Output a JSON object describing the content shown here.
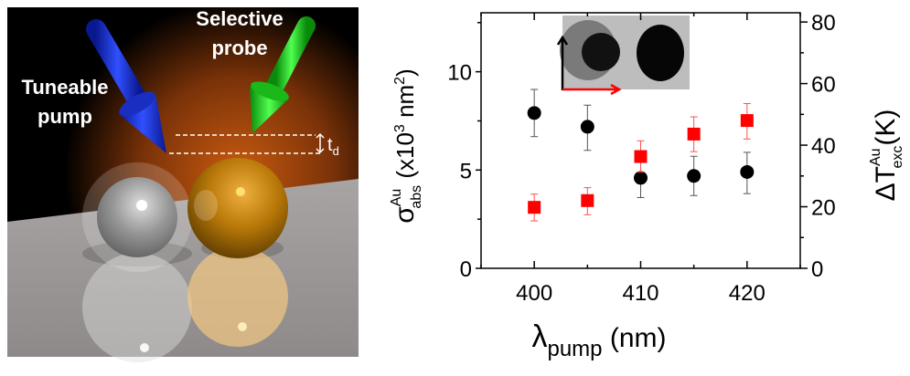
{
  "illustration": {
    "pump_label_line1": "Tuneable",
    "pump_label_line2": "pump",
    "probe_label_line1": "Selective",
    "probe_label_line2": "probe",
    "delay_label": "t",
    "delay_subscript": "d",
    "pump_color": "#1a2fe0",
    "probe_color": "#22d422",
    "gold_sphere_color": "#c8860a",
    "core_shell_sphere_color": "#8a8a8a"
  },
  "inset": {
    "description_visible": false,
    "arrow_colors": [
      "#000000",
      "#ff0000"
    ]
  },
  "chart_data": {
    "type": "scatter",
    "xlabel": "λ",
    "xlabel_sub": "pump",
    "xlabel_unit": " (nm)",
    "ylabel_left": {
      "symbol": "σ",
      "sup": "Au",
      "sub": "abs",
      "unit": " (x10",
      "unit_exp": "3",
      "unit_tail": " nm",
      "unit_exp2": "2",
      "unit_close": ")"
    },
    "ylabel_right": {
      "symbol": "ΔT",
      "sup": "Au",
      "sub": "exc",
      "unit": "(K)"
    },
    "xlim": [
      395,
      425
    ],
    "ylim_left": [
      0,
      13
    ],
    "ylim_right": [
      0,
      83
    ],
    "xticks": [
      400,
      410,
      420
    ],
    "xticks_minor": [
      395,
      405,
      415,
      425
    ],
    "yticks_left": [
      0,
      5,
      10
    ],
    "yticks_right": [
      0,
      20,
      40,
      60,
      80
    ],
    "grid": false,
    "series": [
      {
        "axis": "left",
        "marker": "circle",
        "color": "#000000",
        "x": [
          400,
          405,
          410,
          415,
          420
        ],
        "y": [
          7.9,
          7.2,
          4.6,
          4.7,
          4.9
        ],
        "err_low": [
          6.7,
          6.0,
          3.6,
          3.7,
          3.8
        ],
        "err_high": [
          9.1,
          8.3,
          5.7,
          5.7,
          5.9
        ]
      },
      {
        "axis": "right",
        "marker": "square",
        "color": "#ff0000",
        "x": [
          400,
          405,
          410,
          415,
          420
        ],
        "y": [
          19.8,
          22.0,
          36.3,
          43.6,
          48.0
        ],
        "err_low": [
          15.4,
          17.4,
          31.3,
          37.9,
          42.0
        ],
        "err_high": [
          24.1,
          26.2,
          41.4,
          49.2,
          53.5
        ]
      }
    ]
  }
}
